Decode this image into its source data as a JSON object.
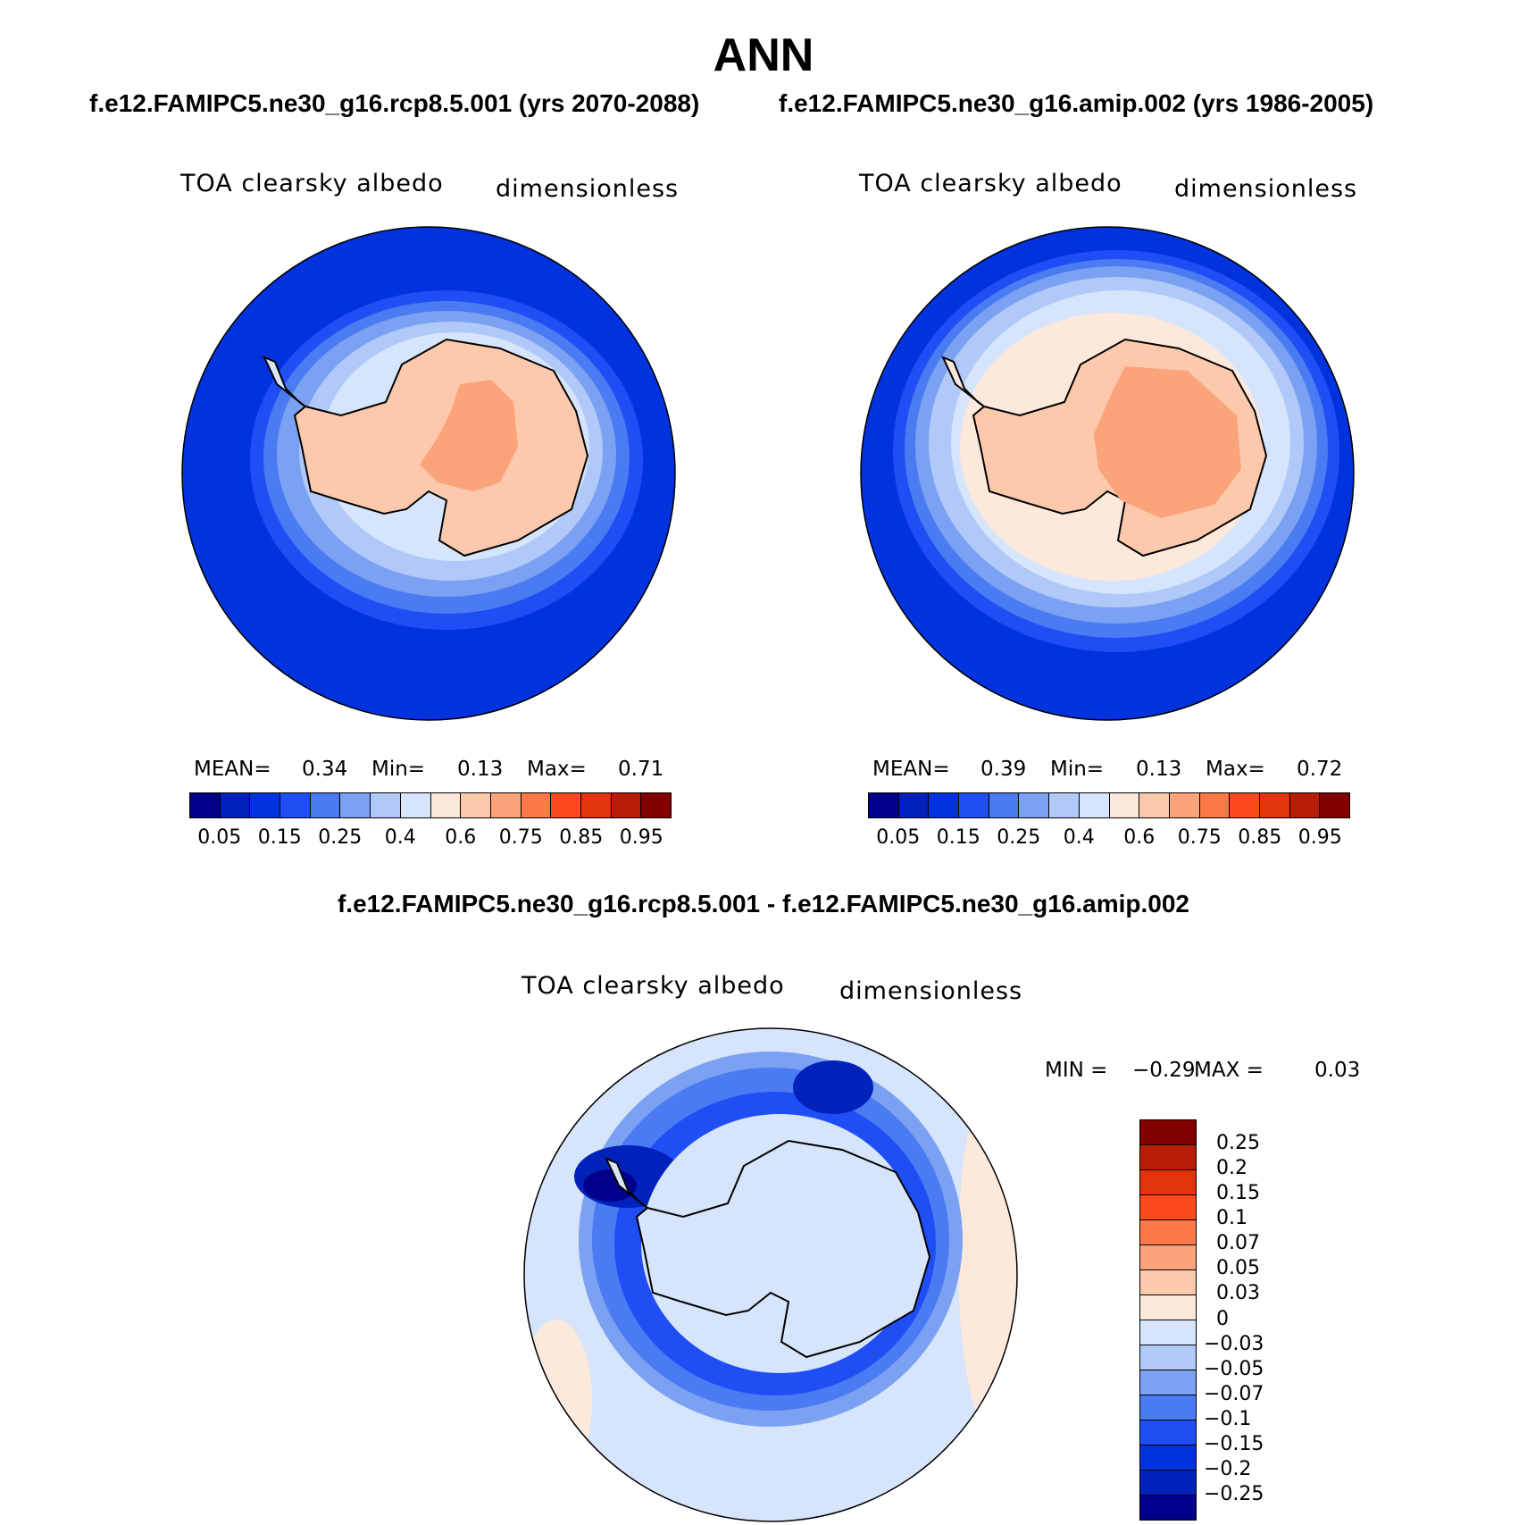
{
  "chart_data": [
    {
      "type": "heatmap",
      "panel": "top-left",
      "main_title": "ANN",
      "case_title": "f.e12.FAMIPC5.ne30_g16.rcp8.5.001 (yrs 2070-2088)",
      "variable": "TOA clearsky albedo",
      "units": "dimensionless",
      "projection": "south polar stereographic",
      "stats": {
        "mean_label": "MEAN=",
        "mean": "0.34",
        "min_label": "Min=",
        "min": "0.13",
        "max_label": "Max=",
        "max": "0.71"
      },
      "colorbar": {
        "orientation": "horizontal",
        "tick_labels": [
          "0.05",
          "0.15",
          "0.25",
          "0.4",
          "0.6",
          "0.75",
          "0.85",
          "0.95"
        ],
        "colors": [
          "#00008b",
          "#0022bb",
          "#0033dd",
          "#1f4ef5",
          "#4a7bf2",
          "#7ba1f2",
          "#b0c9f8",
          "#d6e5fb",
          "#fde9dc",
          "#fcc9ad",
          "#fba47c",
          "#fb7a48",
          "#fb4a1e",
          "#e2330d",
          "#b81d08",
          "#820000"
        ]
      }
    },
    {
      "type": "heatmap",
      "panel": "top-right",
      "case_title": "f.e12.FAMIPC5.ne30_g16.amip.002 (yrs 1986-2005)",
      "variable": "TOA clearsky albedo",
      "units": "dimensionless",
      "projection": "south polar stereographic",
      "stats": {
        "mean_label": "MEAN=",
        "mean": "0.39",
        "min_label": "Min=",
        "min": "0.13",
        "max_label": "Max=",
        "max": "0.72"
      },
      "colorbar": {
        "orientation": "horizontal",
        "tick_labels": [
          "0.05",
          "0.15",
          "0.25",
          "0.4",
          "0.6",
          "0.75",
          "0.85",
          "0.95"
        ],
        "colors": [
          "#00008b",
          "#0022bb",
          "#0033dd",
          "#1f4ef5",
          "#4a7bf2",
          "#7ba1f2",
          "#b0c9f8",
          "#d6e5fb",
          "#fde9dc",
          "#fcc9ad",
          "#fba47c",
          "#fb7a48",
          "#fb4a1e",
          "#e2330d",
          "#b81d08",
          "#820000"
        ]
      }
    },
    {
      "type": "heatmap",
      "panel": "bottom-difference",
      "case_title": "f.e12.FAMIPC5.ne30_g16.rcp8.5.001 - f.e12.FAMIPC5.ne30_g16.amip.002",
      "variable": "TOA clearsky albedo",
      "units": "dimensionless",
      "projection": "south polar stereographic",
      "stats": {
        "min_label": "MIN =",
        "min": "−0.29",
        "max_label": "MAX =",
        "max": "0.03"
      },
      "colorbar": {
        "orientation": "vertical",
        "tick_labels": [
          "0.25",
          "0.2",
          "0.15",
          "0.1",
          "0.07",
          "0.05",
          "0.03",
          "0",
          "−0.03",
          "−0.05",
          "−0.07",
          "−0.1",
          "−0.15",
          "−0.2",
          "−0.25"
        ],
        "colors": [
          "#820000",
          "#b81d08",
          "#e2330d",
          "#fb4a1e",
          "#fb7a48",
          "#fba47c",
          "#fcc9ad",
          "#fde9dc",
          "#d6e5fb",
          "#b0c9f8",
          "#7ba1f2",
          "#4a7bf2",
          "#1f4ef5",
          "#0033dd",
          "#0022bb",
          "#00008b"
        ]
      }
    }
  ]
}
